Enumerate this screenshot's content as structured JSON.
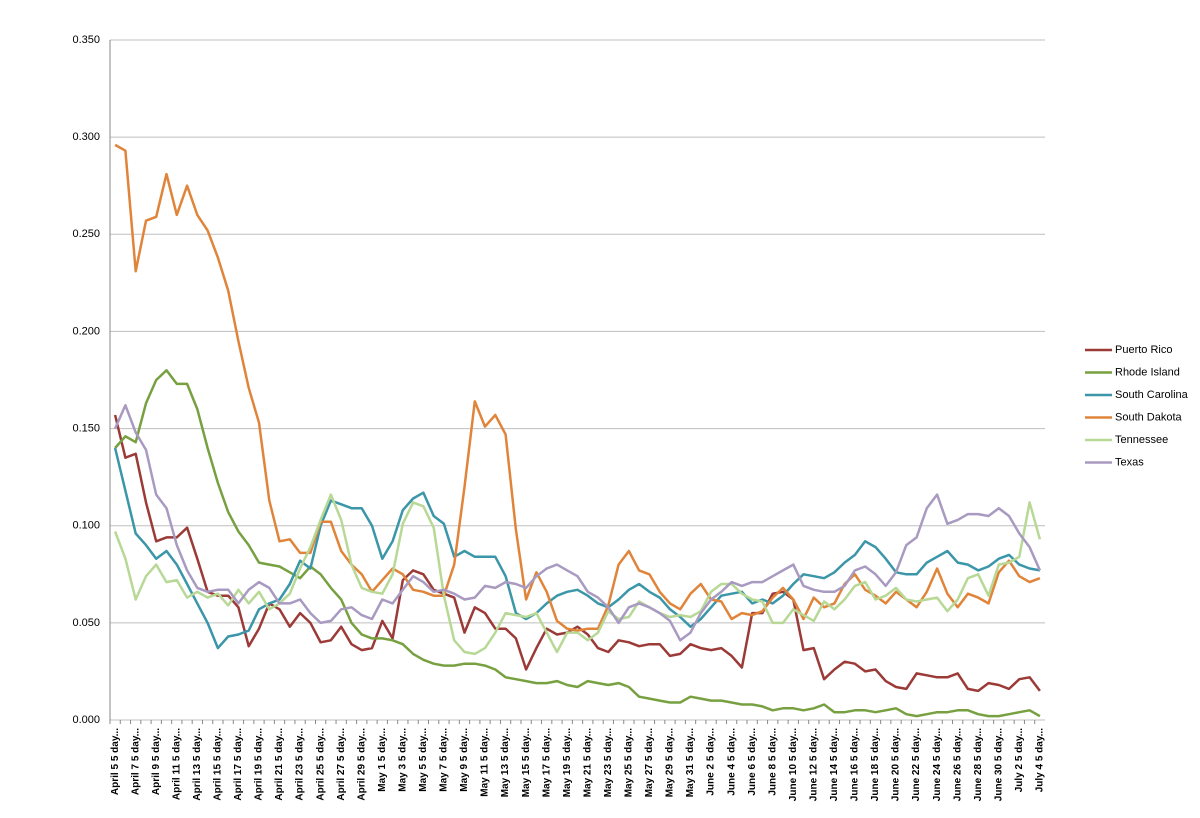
{
  "chart_data": {
    "type": "line",
    "categories": [
      "April 5 5 day...",
      null,
      "April 7 5 day...",
      null,
      "April 9 5 day...",
      null,
      "April 11 5 day...",
      null,
      "April 13 5 day...",
      null,
      "April 15 5 day...",
      null,
      "April 17 5 day...",
      null,
      "April 19 5 day...",
      null,
      "April 21 5 day...",
      null,
      "April 23 5 day...",
      null,
      "April 25 5 day...",
      null,
      "April 27 5 day...",
      null,
      "April 29 5 day...",
      null,
      "May 1 5 day...",
      null,
      "May 3 5 day...",
      null,
      "May 5 5 day...",
      null,
      "May 7 5 day...",
      null,
      "May 9 5 day...",
      null,
      "May 11 5 day...",
      null,
      "May 13 5 day...",
      null,
      "May 15 5 day...",
      null,
      "May 17 5 day...",
      null,
      "May 19 5 day...",
      null,
      "May 21 5 day...",
      null,
      "May 23 5 day...",
      null,
      "May 25 5 day...",
      null,
      "May 27 5 day...",
      null,
      "May 29 5 day...",
      null,
      "May 31 5 day...",
      null,
      "June 2 5 day...",
      null,
      "June 4 5 day...",
      null,
      "June 6 5 day...",
      null,
      "June 8 5 day...",
      null,
      "June 10 5 day...",
      null,
      "June 12 5 day...",
      null,
      "June 14 5 day...",
      null,
      "June 16 5 day...",
      null,
      "June 18 5 day...",
      null,
      "June 20 5 day...",
      null,
      "June 22 5 day...",
      null,
      "June 24 5 day...",
      null,
      "June 26 5 day...",
      null,
      "June 28 5 day...",
      null,
      "June 30 5 day...",
      null,
      "July 2 5 day...",
      null,
      "July 4 5 day..."
    ],
    "series": [
      {
        "name": "Puerto Rico",
        "color": "#9b3a36",
        "values": [
          0.157,
          0.135,
          0.137,
          0.112,
          0.092,
          0.094,
          0.094,
          0.099,
          0.083,
          0.066,
          0.064,
          0.064,
          0.058,
          0.038,
          0.047,
          0.06,
          0.057,
          0.048,
          0.055,
          0.05,
          0.04,
          0.041,
          0.048,
          0.039,
          0.036,
          0.037,
          0.051,
          0.042,
          0.072,
          0.077,
          0.075,
          0.067,
          0.065,
          0.063,
          0.045,
          0.058,
          0.055,
          0.047,
          0.047,
          0.042,
          0.026,
          0.037,
          0.047,
          0.044,
          0.045,
          0.048,
          0.044,
          0.037,
          0.035,
          0.041,
          0.04,
          0.038,
          0.039,
          0.039,
          0.033,
          0.034,
          0.039,
          0.037,
          0.036,
          0.037,
          0.033,
          0.027,
          0.055,
          0.055,
          0.065,
          0.066,
          0.062,
          0.036,
          0.037,
          0.021,
          0.026,
          0.03,
          0.029,
          0.025,
          0.026,
          0.02,
          0.017,
          0.016,
          0.024,
          0.023,
          0.022,
          0.022,
          0.024,
          0.016,
          0.015,
          0.019,
          0.018,
          0.016,
          0.021,
          0.022,
          0.015
        ]
      },
      {
        "name": "Rhode Island",
        "color": "#77a040",
        "values": [
          0.14,
          0.146,
          0.143,
          0.163,
          0.175,
          0.18,
          0.173,
          0.173,
          0.16,
          0.14,
          0.122,
          0.107,
          0.097,
          0.09,
          0.081,
          0.08,
          0.079,
          0.076,
          0.073,
          0.079,
          0.075,
          0.068,
          0.062,
          0.05,
          0.044,
          0.042,
          0.042,
          0.041,
          0.039,
          0.034,
          0.031,
          0.029,
          0.028,
          0.028,
          0.029,
          0.029,
          0.028,
          0.026,
          0.022,
          0.021,
          0.02,
          0.019,
          0.019,
          0.02,
          0.018,
          0.017,
          0.02,
          0.019,
          0.018,
          0.019,
          0.017,
          0.012,
          0.011,
          0.01,
          0.009,
          0.009,
          0.012,
          0.011,
          0.01,
          0.01,
          0.009,
          0.008,
          0.008,
          0.007,
          0.005,
          0.006,
          0.006,
          0.005,
          0.006,
          0.008,
          0.004,
          0.004,
          0.005,
          0.005,
          0.004,
          0.005,
          0.006,
          0.003,
          0.002,
          0.003,
          0.004,
          0.004,
          0.005,
          0.005,
          0.003,
          0.002,
          0.002,
          0.003,
          0.004,
          0.005,
          0.002
        ]
      },
      {
        "name": "South Carolina",
        "color": "#3a96a8",
        "values": [
          0.14,
          0.118,
          0.096,
          0.09,
          0.083,
          0.087,
          0.08,
          0.07,
          0.06,
          0.05,
          0.037,
          0.043,
          0.044,
          0.046,
          0.057,
          0.06,
          0.062,
          0.07,
          0.082,
          0.078,
          0.1,
          0.113,
          0.111,
          0.109,
          0.109,
          0.1,
          0.083,
          0.092,
          0.108,
          0.114,
          0.117,
          0.105,
          0.101,
          0.084,
          0.087,
          0.084,
          0.084,
          0.084,
          0.074,
          0.055,
          0.052,
          0.055,
          0.06,
          0.064,
          0.066,
          0.067,
          0.064,
          0.06,
          0.058,
          0.062,
          0.067,
          0.07,
          0.066,
          0.063,
          0.057,
          0.053,
          0.048,
          0.052,
          0.058,
          0.064,
          0.065,
          0.066,
          0.06,
          0.062,
          0.06,
          0.064,
          0.07,
          0.075,
          0.074,
          0.073,
          0.076,
          0.081,
          0.085,
          0.092,
          0.089,
          0.083,
          0.076,
          0.075,
          0.075,
          0.081,
          0.084,
          0.087,
          0.081,
          0.08,
          0.077,
          0.079,
          0.083,
          0.085,
          0.08,
          0.078,
          0.077
        ]
      },
      {
        "name": "South Dakota",
        "color": "#e0843a",
        "values": [
          0.296,
          0.293,
          0.231,
          0.257,
          0.259,
          0.281,
          0.26,
          0.275,
          0.26,
          0.252,
          0.238,
          0.221,
          0.195,
          0.171,
          0.153,
          0.113,
          0.092,
          0.093,
          0.086,
          0.086,
          0.102,
          0.102,
          0.087,
          0.08,
          0.075,
          0.066,
          0.072,
          0.078,
          0.075,
          0.067,
          0.066,
          0.064,
          0.064,
          0.08,
          0.12,
          0.164,
          0.151,
          0.157,
          0.147,
          0.098,
          0.062,
          0.076,
          0.066,
          0.051,
          0.047,
          0.046,
          0.047,
          0.047,
          0.059,
          0.08,
          0.087,
          0.077,
          0.075,
          0.066,
          0.06,
          0.057,
          0.065,
          0.07,
          0.062,
          0.061,
          0.052,
          0.055,
          0.054,
          0.056,
          0.063,
          0.068,
          0.062,
          0.052,
          0.063,
          0.058,
          0.06,
          0.07,
          0.075,
          0.067,
          0.064,
          0.06,
          0.066,
          0.062,
          0.058,
          0.066,
          0.078,
          0.065,
          0.058,
          0.065,
          0.063,
          0.06,
          0.076,
          0.082,
          0.074,
          0.071,
          0.073
        ]
      },
      {
        "name": "Tennessee",
        "color": "#b8d896",
        "values": [
          0.097,
          0.083,
          0.062,
          0.074,
          0.08,
          0.071,
          0.072,
          0.063,
          0.066,
          0.063,
          0.065,
          0.059,
          0.067,
          0.06,
          0.066,
          0.057,
          0.06,
          0.065,
          0.078,
          0.089,
          0.103,
          0.116,
          0.103,
          0.08,
          0.068,
          0.066,
          0.065,
          0.075,
          0.101,
          0.112,
          0.11,
          0.099,
          0.064,
          0.041,
          0.035,
          0.034,
          0.037,
          0.045,
          0.055,
          0.054,
          0.053,
          0.055,
          0.045,
          0.035,
          0.045,
          0.045,
          0.041,
          0.045,
          0.056,
          0.052,
          0.053,
          0.061,
          0.058,
          0.055,
          0.053,
          0.054,
          0.053,
          0.056,
          0.066,
          0.07,
          0.07,
          0.065,
          0.062,
          0.061,
          0.05,
          0.05,
          0.057,
          0.054,
          0.051,
          0.061,
          0.057,
          0.062,
          0.069,
          0.071,
          0.062,
          0.064,
          0.068,
          0.062,
          0.061,
          0.062,
          0.063,
          0.056,
          0.062,
          0.073,
          0.075,
          0.064,
          0.08,
          0.081,
          0.084,
          0.112,
          0.093
        ]
      },
      {
        "name": "Texas",
        "color": "#a89ac0",
        "values": [
          0.15,
          0.162,
          0.148,
          0.139,
          0.116,
          0.109,
          0.09,
          0.077,
          0.068,
          0.066,
          0.067,
          0.067,
          0.06,
          0.067,
          0.071,
          0.068,
          0.06,
          0.06,
          0.062,
          0.055,
          0.05,
          0.051,
          0.057,
          0.058,
          0.054,
          0.052,
          0.062,
          0.06,
          0.067,
          0.074,
          0.071,
          0.066,
          0.067,
          0.065,
          0.062,
          0.063,
          0.069,
          0.068,
          0.071,
          0.07,
          0.068,
          0.074,
          0.078,
          0.08,
          0.077,
          0.074,
          0.066,
          0.063,
          0.058,
          0.05,
          0.058,
          0.06,
          0.058,
          0.055,
          0.051,
          0.041,
          0.045,
          0.055,
          0.062,
          0.066,
          0.071,
          0.069,
          0.071,
          0.071,
          0.074,
          0.077,
          0.08,
          0.069,
          0.067,
          0.066,
          0.066,
          0.069,
          0.077,
          0.079,
          0.075,
          0.069,
          0.076,
          0.09,
          0.094,
          0.109,
          0.116,
          0.101,
          0.103,
          0.106,
          0.106,
          0.105,
          0.109,
          0.105,
          0.096,
          0.089,
          0.077
        ]
      }
    ],
    "ylim": [
      0,
      0.35
    ],
    "yticks": [
      {
        "value": 0,
        "label": "0.000"
      },
      {
        "value": 0.05,
        "label": "0.050"
      },
      {
        "value": 0.1,
        "label": "0.100"
      },
      {
        "value": 0.15,
        "label": "0.150"
      },
      {
        "value": 0.2,
        "label": "0.200"
      },
      {
        "value": 0.25,
        "label": "0.250"
      },
      {
        "value": 0.3,
        "label": "0.300"
      },
      {
        "value": 0.35,
        "label": "0.350"
      }
    ],
    "grid": true,
    "legend": "right"
  }
}
